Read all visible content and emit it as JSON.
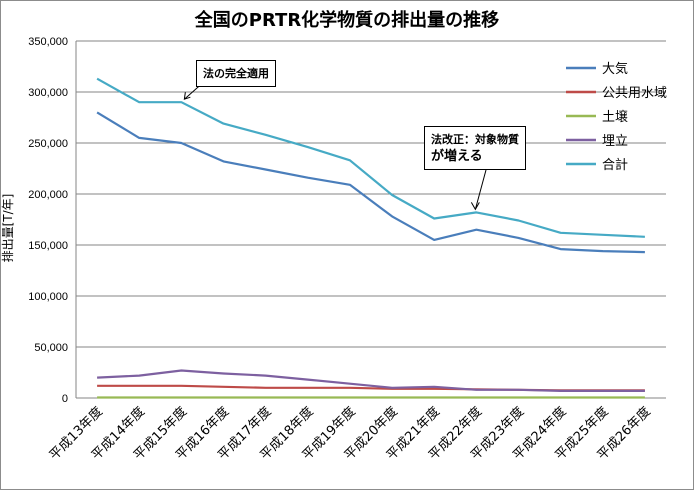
{
  "chart_data": {
    "type": "line",
    "title": "全国のPRTR化学物質の排出量の推移",
    "ylabel": "排出量[T/年]",
    "xlabel": "",
    "ylim": [
      0,
      350000
    ],
    "yticks": [
      "0",
      "50,000",
      "100,000",
      "150,000",
      "200,000",
      "250,000",
      "300,000",
      "350,000"
    ],
    "categories": [
      "平成13年度",
      "平成14年度",
      "平成15年度",
      "平成16年度",
      "平成17年度",
      "平成18年度",
      "平成19年度",
      "平成20年度",
      "平成21年度",
      "平成22年度",
      "平成23年度",
      "平成24年度",
      "平成25年度",
      "平成26年度"
    ],
    "grid": true,
    "legend_position": "right",
    "series": [
      {
        "name": "大気",
        "color": "#4a7ebb",
        "values": [
          280000,
          255000,
          250000,
          232000,
          224000,
          216000,
          209000,
          178000,
          155000,
          165000,
          157000,
          146000,
          144000,
          143000
        ]
      },
      {
        "name": "公共用水域",
        "color": "#be4b48",
        "values": [
          12000,
          12000,
          12000,
          11000,
          10000,
          10000,
          10000,
          9000,
          9000,
          8500,
          8000,
          7500,
          7500,
          7500
        ]
      },
      {
        "name": "土壌",
        "color": "#98b954",
        "values": [
          500,
          500,
          500,
          500,
          500,
          500,
          500,
          500,
          500,
          500,
          500,
          500,
          500,
          500
        ]
      },
      {
        "name": "埋立",
        "color": "#7d60a0",
        "values": [
          20000,
          22000,
          27000,
          24000,
          22000,
          18000,
          14000,
          10000,
          11000,
          8000,
          8000,
          7000,
          7000,
          7000
        ]
      },
      {
        "name": "合計",
        "color": "#46aac5",
        "values": [
          313000,
          290000,
          290000,
          269000,
          258000,
          246000,
          233000,
          199000,
          176000,
          182000,
          174000,
          162000,
          160000,
          158000
        ]
      }
    ],
    "annotations": [
      {
        "text": "法の完全適用",
        "category": "平成15年度"
      },
      {
        "lines": [
          "法改正：対象物質",
          "が増える"
        ],
        "category": "平成22年度"
      }
    ]
  }
}
